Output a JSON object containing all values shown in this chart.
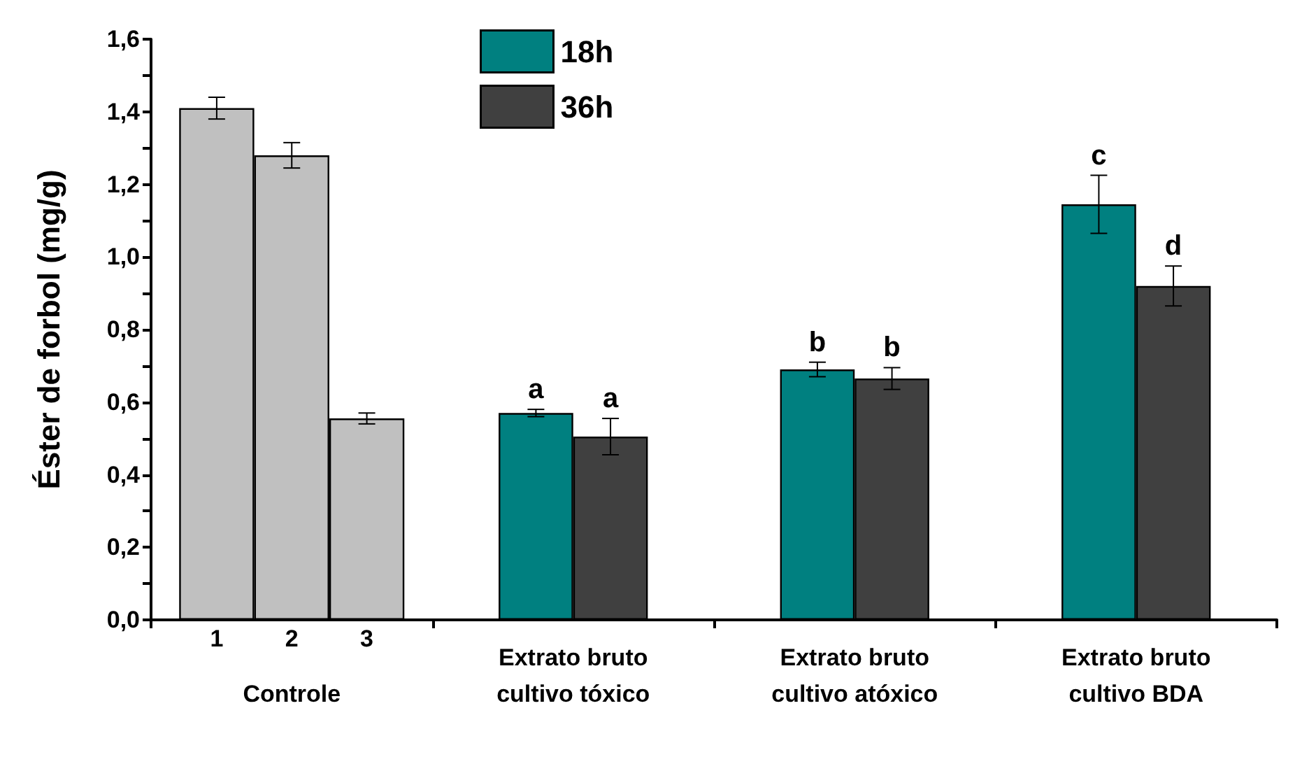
{
  "chart_data": {
    "type": "bar",
    "ylabel": "Éster de forbol (mg/g)",
    "categories": [
      "Controle",
      "Extrato bruto\ncultivo tóxico",
      "Extrato bruto\ncultivo atóxico",
      "Extrato bruto\ncultivo BDA"
    ],
    "series": [
      {
        "name": "1",
        "color": "#c0c0c0",
        "values": [
          1.41,
          null,
          null,
          null
        ],
        "errors": [
          0.03,
          null,
          null,
          null
        ]
      },
      {
        "name": "2",
        "color": "#c0c0c0",
        "values": [
          1.28,
          null,
          null,
          null
        ],
        "errors": [
          0.035,
          null,
          null,
          null
        ]
      },
      {
        "name": "3",
        "color": "#c0c0c0",
        "values": [
          0.555,
          null,
          null,
          null
        ],
        "errors": [
          0.015,
          null,
          null,
          null
        ]
      },
      {
        "name": "18h",
        "color": "#008080",
        "values": [
          null,
          0.57,
          0.69,
          1.145
        ],
        "errors": [
          null,
          0.01,
          0.02,
          0.08
        ],
        "value_labels": [
          null,
          "a",
          "b",
          "c"
        ]
      },
      {
        "name": "36h",
        "color": "#404040",
        "values": [
          null,
          0.505,
          0.665,
          0.92
        ],
        "errors": [
          null,
          0.05,
          0.03,
          0.055
        ],
        "value_labels": [
          null,
          "a",
          "b",
          "d"
        ]
      }
    ],
    "ylim": [
      0,
      1.6
    ],
    "yticks": [
      {
        "value": 0,
        "label": "0,0"
      },
      {
        "value": 0.1,
        "label": null
      },
      {
        "value": 0.2,
        "label": "0,2"
      },
      {
        "value": 0.3,
        "label": null
      },
      {
        "value": 0.4,
        "label": "0,4"
      },
      {
        "value": 0.5,
        "label": null
      },
      {
        "value": 0.6,
        "label": "0,6"
      },
      {
        "value": 0.7,
        "label": null
      },
      {
        "value": 0.8,
        "label": "0,8"
      },
      {
        "value": 0.9,
        "label": null
      },
      {
        "value": 1.0,
        "label": "1,0"
      },
      {
        "value": 1.1,
        "label": null
      },
      {
        "value": 1.2,
        "label": "1,2"
      },
      {
        "value": 1.3,
        "label": null
      },
      {
        "value": 1.4,
        "label": "1,4"
      },
      {
        "value": 1.5,
        "label": null
      },
      {
        "value": 1.6,
        "label": "1,6"
      }
    ],
    "legend": "top",
    "grid": false
  }
}
